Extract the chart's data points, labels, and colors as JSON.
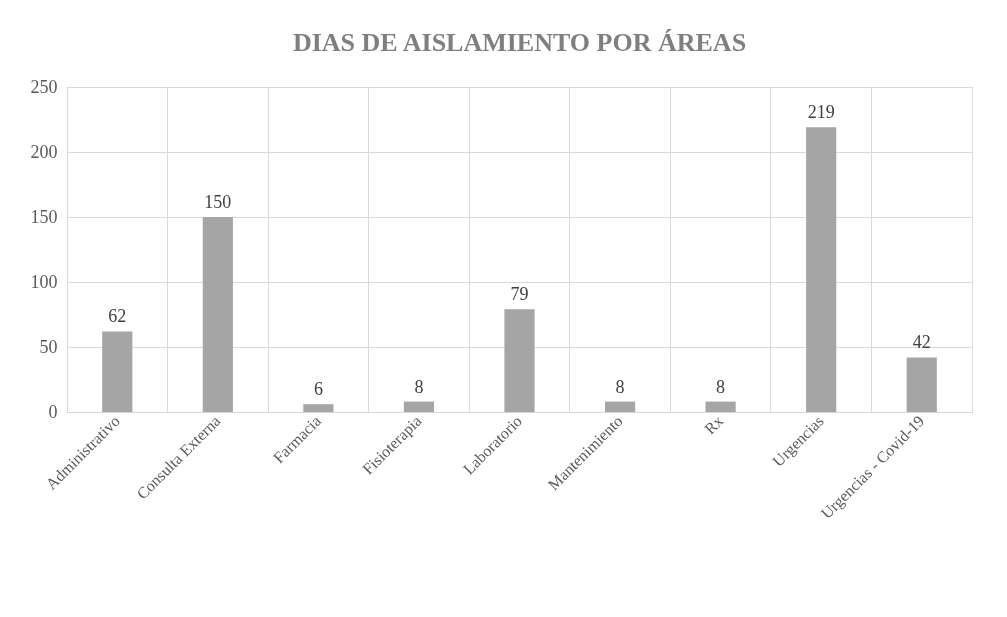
{
  "chart_data": {
    "type": "bar",
    "title": "DIAS DE AISLAMIENTO POR ÁREAS",
    "categories": [
      "Administrativo",
      "Consulta Externa",
      "Farmacia",
      "Fisioterapia",
      "Laboratorio",
      "Mantenimiento",
      "Rx",
      "Urgencias",
      "Urgencias - Covid-19"
    ],
    "values": [
      62,
      150,
      6,
      8,
      79,
      8,
      8,
      219,
      42
    ],
    "color": "#a5a5a5",
    "ylim": [
      0,
      250
    ],
    "yticks": [
      0,
      50,
      100,
      150,
      200,
      250
    ],
    "grid": true,
    "data_labels": true
  }
}
